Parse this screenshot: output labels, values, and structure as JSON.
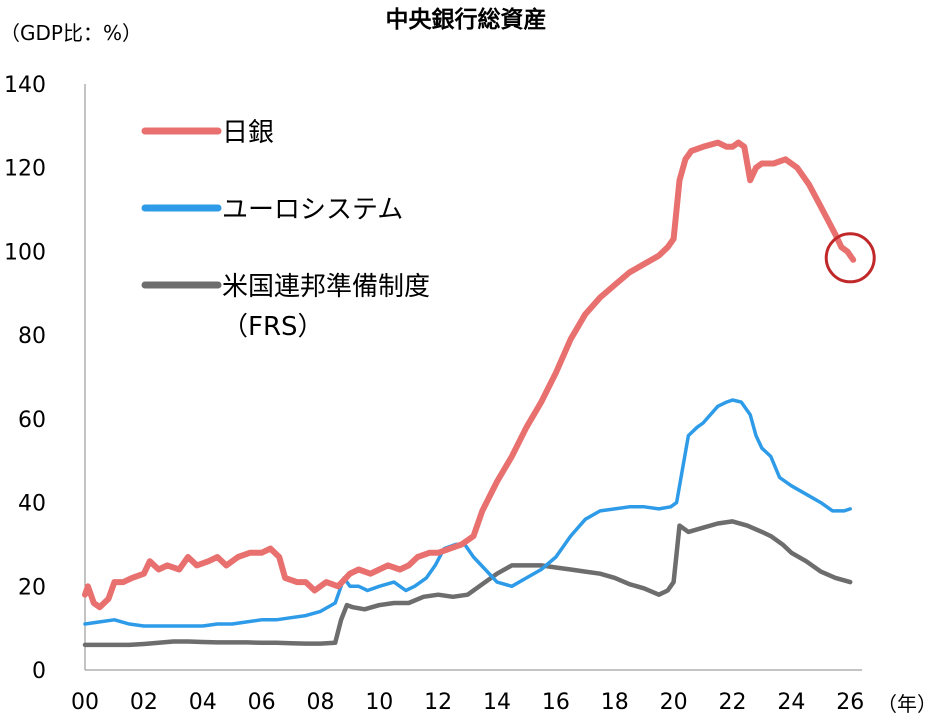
{
  "chart_data": {
    "type": "line",
    "title": "中央銀行総資産",
    "ylabel": "（GDP比：%）",
    "xlabel": "（年）",
    "ylim": [
      0,
      140
    ],
    "yticks": [
      0,
      20,
      40,
      60,
      80,
      100,
      120,
      140
    ],
    "xlim": [
      2000,
      2026.4
    ],
    "xticks": [
      2000,
      2002,
      2004,
      2006,
      2008,
      2010,
      2012,
      2014,
      2016,
      2018,
      2020,
      2022,
      2024,
      2026
    ],
    "xtick_labels": [
      "00",
      "02",
      "04",
      "06",
      "08",
      "10",
      "12",
      "14",
      "16",
      "18",
      "20",
      "22",
      "24",
      "26"
    ],
    "grid": false,
    "legend_position": "top-left",
    "highlight": {
      "series": "日銀",
      "x": 2026.0,
      "y": 98,
      "color": "#c0282a"
    },
    "series": [
      {
        "name": "日銀",
        "color": "#e8706f",
        "points": [
          [
            2000.0,
            18
          ],
          [
            2000.1,
            20
          ],
          [
            2000.3,
            16
          ],
          [
            2000.5,
            15
          ],
          [
            2000.8,
            17
          ],
          [
            2001.0,
            21
          ],
          [
            2001.3,
            21
          ],
          [
            2001.6,
            22
          ],
          [
            2002.0,
            23
          ],
          [
            2002.2,
            26
          ],
          [
            2002.5,
            24
          ],
          [
            2002.8,
            25
          ],
          [
            2003.2,
            24
          ],
          [
            2003.5,
            27
          ],
          [
            2003.8,
            25
          ],
          [
            2004.2,
            26
          ],
          [
            2004.5,
            27
          ],
          [
            2004.8,
            25
          ],
          [
            2005.2,
            27
          ],
          [
            2005.6,
            28
          ],
          [
            2006.0,
            28
          ],
          [
            2006.3,
            29
          ],
          [
            2006.6,
            27
          ],
          [
            2006.8,
            22
          ],
          [
            2007.2,
            21
          ],
          [
            2007.5,
            21
          ],
          [
            2007.8,
            19
          ],
          [
            2008.2,
            21
          ],
          [
            2008.6,
            20
          ],
          [
            2009.0,
            23
          ],
          [
            2009.3,
            24
          ],
          [
            2009.7,
            23
          ],
          [
            2010.0,
            24
          ],
          [
            2010.3,
            25
          ],
          [
            2010.7,
            24
          ],
          [
            2011.0,
            25
          ],
          [
            2011.3,
            27
          ],
          [
            2011.7,
            28
          ],
          [
            2012.0,
            28
          ],
          [
            2012.4,
            29
          ],
          [
            2012.8,
            30
          ],
          [
            2013.2,
            32
          ],
          [
            2013.5,
            38
          ],
          [
            2014.0,
            45
          ],
          [
            2014.5,
            51
          ],
          [
            2015.0,
            58
          ],
          [
            2015.5,
            64
          ],
          [
            2016.0,
            71
          ],
          [
            2016.5,
            79
          ],
          [
            2017.0,
            85
          ],
          [
            2017.5,
            89
          ],
          [
            2018.0,
            92
          ],
          [
            2018.5,
            95
          ],
          [
            2019.0,
            97
          ],
          [
            2019.5,
            99
          ],
          [
            2019.8,
            101
          ],
          [
            2020.0,
            103
          ],
          [
            2020.2,
            117
          ],
          [
            2020.4,
            122
          ],
          [
            2020.6,
            124
          ],
          [
            2021.0,
            125
          ],
          [
            2021.5,
            126
          ],
          [
            2021.8,
            125
          ],
          [
            2022.0,
            125
          ],
          [
            2022.2,
            126
          ],
          [
            2022.4,
            125
          ],
          [
            2022.6,
            117
          ],
          [
            2022.8,
            120
          ],
          [
            2023.0,
            121
          ],
          [
            2023.4,
            121
          ],
          [
            2023.8,
            122
          ],
          [
            2024.2,
            120
          ],
          [
            2024.6,
            116
          ],
          [
            2024.9,
            112
          ],
          [
            2025.2,
            108
          ],
          [
            2025.5,
            104
          ],
          [
            2025.7,
            101
          ],
          [
            2025.9,
            100
          ],
          [
            2026.1,
            98
          ]
        ]
      },
      {
        "name": "ユーロシステム",
        "color": "#2e9be8",
        "points": [
          [
            2000.0,
            11
          ],
          [
            2000.5,
            11.5
          ],
          [
            2001.0,
            12
          ],
          [
            2001.5,
            11
          ],
          [
            2002.0,
            10.5
          ],
          [
            2002.5,
            10.5
          ],
          [
            2003.0,
            10.5
          ],
          [
            2003.5,
            10.5
          ],
          [
            2004.0,
            10.5
          ],
          [
            2004.5,
            11
          ],
          [
            2005.0,
            11
          ],
          [
            2005.5,
            11.5
          ],
          [
            2006.0,
            12
          ],
          [
            2006.5,
            12
          ],
          [
            2007.0,
            12.5
          ],
          [
            2007.5,
            13
          ],
          [
            2008.0,
            14
          ],
          [
            2008.5,
            16
          ],
          [
            2008.8,
            22
          ],
          [
            2009.0,
            20
          ],
          [
            2009.3,
            20
          ],
          [
            2009.6,
            19
          ],
          [
            2010.0,
            20
          ],
          [
            2010.5,
            21
          ],
          [
            2010.9,
            19
          ],
          [
            2011.2,
            20
          ],
          [
            2011.6,
            22
          ],
          [
            2011.9,
            25
          ],
          [
            2012.2,
            29
          ],
          [
            2012.6,
            30
          ],
          [
            2012.9,
            30
          ],
          [
            2013.2,
            27
          ],
          [
            2013.6,
            24
          ],
          [
            2014.0,
            21
          ],
          [
            2014.5,
            20
          ],
          [
            2015.0,
            22
          ],
          [
            2015.5,
            24
          ],
          [
            2016.0,
            27
          ],
          [
            2016.5,
            32
          ],
          [
            2017.0,
            36
          ],
          [
            2017.5,
            38
          ],
          [
            2018.0,
            38.5
          ],
          [
            2018.5,
            39
          ],
          [
            2019.0,
            39
          ],
          [
            2019.5,
            38.5
          ],
          [
            2019.9,
            39
          ],
          [
            2020.1,
            40
          ],
          [
            2020.3,
            48
          ],
          [
            2020.5,
            56
          ],
          [
            2020.8,
            58
          ],
          [
            2021.0,
            59
          ],
          [
            2021.5,
            63
          ],
          [
            2021.8,
            64
          ],
          [
            2022.0,
            64.5
          ],
          [
            2022.3,
            64
          ],
          [
            2022.6,
            61
          ],
          [
            2022.8,
            56
          ],
          [
            2023.0,
            53
          ],
          [
            2023.3,
            51
          ],
          [
            2023.6,
            46
          ],
          [
            2024.0,
            44
          ],
          [
            2024.5,
            42
          ],
          [
            2025.0,
            40
          ],
          [
            2025.4,
            38
          ],
          [
            2025.8,
            38
          ],
          [
            2026.0,
            38.5
          ]
        ]
      },
      {
        "name": "米国連邦準備制度（FRS）",
        "color": "#6d6d6d",
        "points": [
          [
            2000.0,
            6
          ],
          [
            2000.5,
            6
          ],
          [
            2001.0,
            6
          ],
          [
            2001.5,
            6
          ],
          [
            2002.0,
            6.2
          ],
          [
            2002.5,
            6.5
          ],
          [
            2003.0,
            6.8
          ],
          [
            2003.5,
            6.8
          ],
          [
            2004.0,
            6.7
          ],
          [
            2004.5,
            6.6
          ],
          [
            2005.0,
            6.6
          ],
          [
            2005.5,
            6.6
          ],
          [
            2006.0,
            6.5
          ],
          [
            2006.5,
            6.5
          ],
          [
            2007.0,
            6.4
          ],
          [
            2007.5,
            6.3
          ],
          [
            2008.0,
            6.3
          ],
          [
            2008.5,
            6.5
          ],
          [
            2008.7,
            12
          ],
          [
            2008.9,
            15.5
          ],
          [
            2009.1,
            15
          ],
          [
            2009.5,
            14.5
          ],
          [
            2010.0,
            15.5
          ],
          [
            2010.5,
            16
          ],
          [
            2011.0,
            16
          ],
          [
            2011.5,
            17.5
          ],
          [
            2012.0,
            18
          ],
          [
            2012.5,
            17.5
          ],
          [
            2013.0,
            18
          ],
          [
            2013.5,
            20.5
          ],
          [
            2014.0,
            23
          ],
          [
            2014.5,
            25
          ],
          [
            2015.0,
            25
          ],
          [
            2015.5,
            25
          ],
          [
            2016.0,
            24.5
          ],
          [
            2016.5,
            24
          ],
          [
            2017.0,
            23.5
          ],
          [
            2017.5,
            23
          ],
          [
            2018.0,
            22
          ],
          [
            2018.5,
            20.5
          ],
          [
            2019.0,
            19.5
          ],
          [
            2019.5,
            18
          ],
          [
            2019.8,
            19
          ],
          [
            2020.0,
            21
          ],
          [
            2020.2,
            34.5
          ],
          [
            2020.5,
            33
          ],
          [
            2021.0,
            34
          ],
          [
            2021.5,
            35
          ],
          [
            2022.0,
            35.5
          ],
          [
            2022.5,
            34.5
          ],
          [
            2023.0,
            33
          ],
          [
            2023.3,
            32
          ],
          [
            2023.7,
            30
          ],
          [
            2024.0,
            28
          ],
          [
            2024.5,
            26
          ],
          [
            2025.0,
            23.5
          ],
          [
            2025.5,
            22
          ],
          [
            2026.0,
            21
          ]
        ]
      }
    ]
  }
}
